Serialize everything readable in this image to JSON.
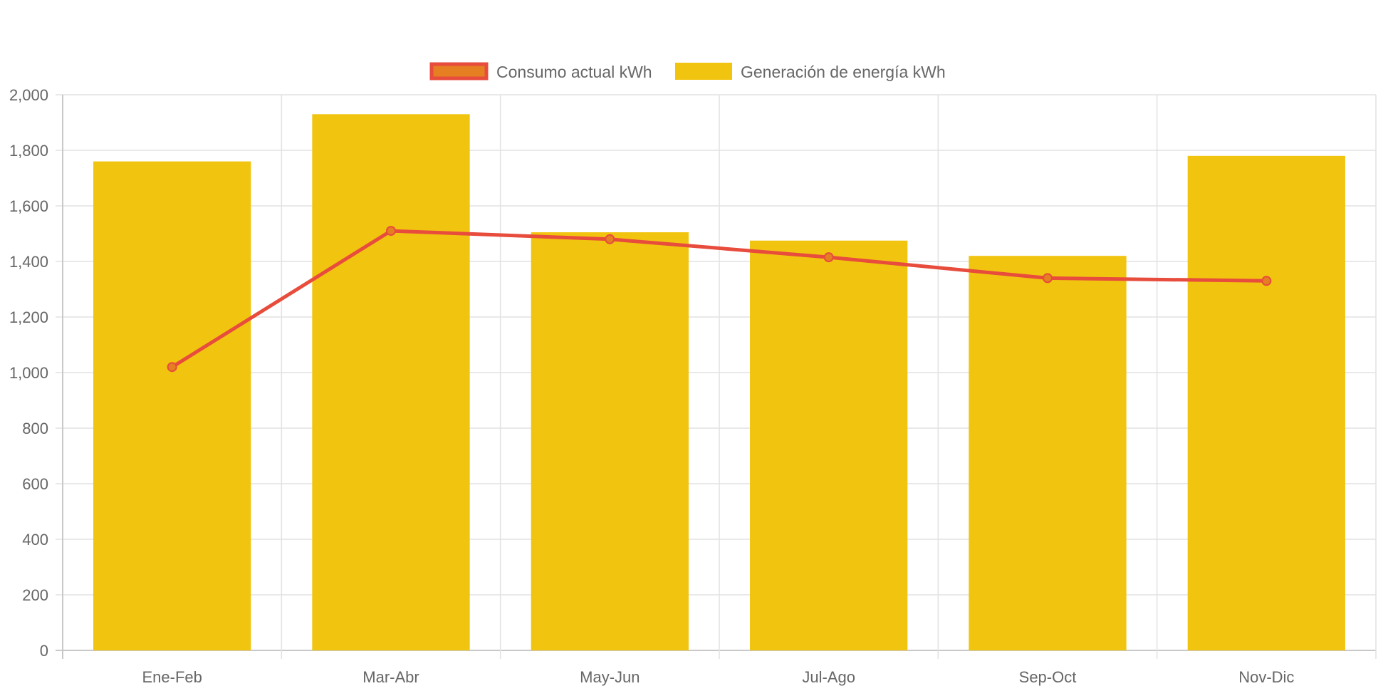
{
  "chart_data": {
    "type": "bar",
    "categories": [
      "Ene-Feb",
      "Mar-Abr",
      "May-Jun",
      "Jul-Ago",
      "Sep-Oct",
      "Nov-Dic"
    ],
    "series": [
      {
        "name": "Consumo actual kWh",
        "type": "line",
        "values": [
          1020,
          1510,
          1480,
          1415,
          1340,
          1330
        ],
        "color": "#e74c3c",
        "point_fill": "#e67e22"
      },
      {
        "name": "Generación de energía kWh",
        "type": "bar",
        "values": [
          1760,
          1930,
          1505,
          1475,
          1420,
          1780
        ],
        "color": "#f1c40f"
      }
    ],
    "ylim": [
      0,
      2000
    ],
    "yticks": [
      0,
      200,
      400,
      600,
      800,
      1000,
      1200,
      1400,
      1600,
      1800,
      2000
    ],
    "ytick_labels": [
      "0",
      "200",
      "400",
      "600",
      "800",
      "1,000",
      "1,200",
      "1,400",
      "1,600",
      "1,800",
      "2,000"
    ],
    "grid": true,
    "legend_position": "top-center",
    "title": "",
    "xlabel": "",
    "ylabel": ""
  }
}
